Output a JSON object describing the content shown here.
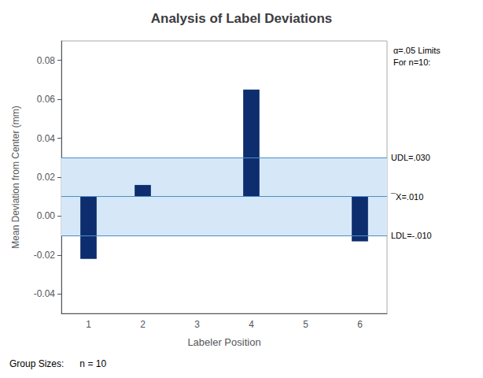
{
  "chart_data": {
    "type": "bar",
    "title": "Analysis of Label Deviations",
    "xlabel": "Labeler Position",
    "ylabel": "Mean Deviation from Center (mm)",
    "categories": [
      1,
      2,
      3,
      4,
      5,
      6
    ],
    "values": [
      0.01,
      0.016,
      0.009,
      0.065,
      0.01,
      0.01
    ],
    "bottoms": [
      -0.022,
      0.01,
      0.009,
      0.01,
      0.01,
      -0.013
    ],
    "color": "#0d2d6e",
    "ylim": [
      -0.05,
      0.09
    ],
    "yticks": [
      -0.04,
      -0.02,
      {
        "value": 0,
        "label": "0.00"
      },
      0.02,
      0.04,
      0.06,
      0.08
    ],
    "band": {
      "values": [
        -0.01,
        0.03
      ],
      "color": "#d6e8f7"
    },
    "lines": [
      {
        "value": 0.03,
        "label": "UDL=.030",
        "color": "#4a90c8"
      },
      {
        "value": 0.01,
        "label": "¯X=.010",
        "color": "#4a90c8"
      },
      {
        "value": -0.01,
        "label": "LDL=-.010",
        "color": "#4a90c8"
      }
    ],
    "annotations": [
      "α=.05 Limits\nFor n=10:",
      "Group Sizes:      n = 10"
    ],
    "grid": false
  }
}
